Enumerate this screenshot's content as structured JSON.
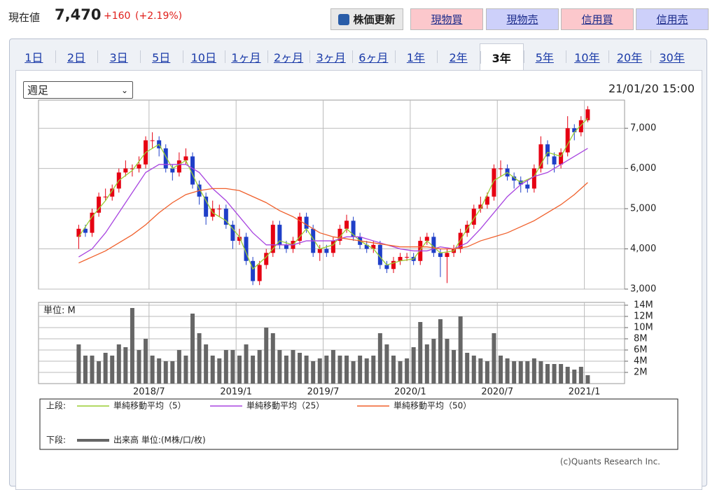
{
  "header": {
    "label": "現在値",
    "price": "7,470",
    "change": "+160",
    "change_pct": "(+2.19%)"
  },
  "buttons": {
    "refresh": "株価更新",
    "orders": [
      "現物買",
      "現物売",
      "信用買",
      "信用売"
    ]
  },
  "tabs": {
    "items": [
      "1日",
      "2日",
      "3日",
      "5日",
      "10日",
      "1ヶ月",
      "2ヶ月",
      "3ヶ月",
      "6ヶ月",
      "1年",
      "2年",
      "3年",
      "5年",
      "10年",
      "20年",
      "30年"
    ],
    "active": 11
  },
  "period_select": "週足",
  "timestamp": "21/01/20 15:00",
  "chart_data": [
    {
      "type": "candlestick",
      "x": [
        -21,
        -19,
        -17,
        -15,
        -13,
        -11,
        -9,
        -7,
        -5,
        -3,
        -1,
        1,
        3,
        5,
        7,
        9,
        11,
        13,
        15,
        17,
        19,
        21,
        23,
        25,
        27,
        29,
        31,
        33,
        35,
        37,
        39,
        41,
        43,
        45,
        47,
        49,
        51,
        53,
        55,
        57,
        59,
        61,
        63,
        65,
        67,
        69,
        71,
        73,
        75,
        77,
        79,
        81,
        83,
        85,
        87,
        89,
        91,
        93,
        95,
        97,
        99,
        101,
        103,
        105,
        107,
        109,
        111,
        113,
        115,
        117,
        119,
        121,
        123,
        125,
        127,
        129,
        131
      ],
      "open": [
        4300,
        4500,
        4400,
        4900,
        5300,
        5300,
        5500,
        5900,
        6000,
        6000,
        6100,
        6700,
        6700,
        6500,
        6000,
        5900,
        6200,
        6300,
        5600,
        5300,
        4800,
        5000,
        5000,
        4600,
        4200,
        4300,
        3700,
        3200,
        3600,
        3900,
        4600,
        4100,
        4000,
        4200,
        4800,
        4500,
        3900,
        4000,
        3900,
        4200,
        4500,
        4700,
        4300,
        4100,
        4000,
        4100,
        3600,
        3500,
        3700,
        3800,
        3800,
        3700,
        4200,
        4300,
        3900,
        3800,
        3900,
        4000,
        4400,
        4600,
        5000,
        5100,
        5300,
        6000,
        6000,
        5800,
        5700,
        5600,
        5500,
        6000,
        6600,
        6300,
        6100,
        6400,
        7000,
        6900,
        7200
      ],
      "high": [
        4600,
        4600,
        5000,
        5400,
        5500,
        5600,
        6000,
        6200,
        6100,
        6300,
        6800,
        6900,
        6800,
        6600,
        6100,
        6400,
        6500,
        6400,
        5700,
        5400,
        5200,
        5100,
        5100,
        4700,
        4500,
        4400,
        3800,
        3700,
        4000,
        4700,
        4700,
        4200,
        4300,
        4900,
        4900,
        4600,
        4100,
        4100,
        4300,
        4600,
        4850,
        4800,
        4400,
        4200,
        4200,
        4200,
        3700,
        3800,
        3900,
        3900,
        3900,
        4300,
        4400,
        4400,
        4000,
        4000,
        4100,
        4500,
        4700,
        5100,
        5300,
        5400,
        6100,
        6200,
        6100,
        5900,
        5800,
        5700,
        6100,
        6800,
        6700,
        6400,
        6500,
        7300,
        7100,
        7300,
        7550
      ],
      "low": [
        4000,
        4300,
        4300,
        4800,
        5200,
        5200,
        5400,
        5800,
        5800,
        5900,
        6000,
        6500,
        6300,
        5900,
        5700,
        5800,
        6100,
        5500,
        5100,
        4600,
        4700,
        4800,
        4500,
        4000,
        4100,
        3600,
        3100,
        3100,
        3500,
        3800,
        4000,
        3900,
        3900,
        4100,
        4400,
        3800,
        3700,
        3800,
        3800,
        4100,
        4400,
        4200,
        4000,
        3900,
        3900,
        3500,
        3400,
        3400,
        3600,
        3700,
        3600,
        3600,
        4100,
        3800,
        3300,
        3150,
        3800,
        3900,
        4300,
        4500,
        4900,
        5000,
        5200,
        5800,
        5700,
        5500,
        5400,
        5400,
        5400,
        5900,
        6100,
        5900,
        6000,
        6300,
        6700,
        6800,
        7150
      ],
      "close": [
        4500,
        4400,
        4900,
        5300,
        5300,
        5500,
        5900,
        6000,
        6000,
        6100,
        6700,
        6700,
        6500,
        6000,
        5900,
        6200,
        6300,
        5600,
        5300,
        4800,
        5000,
        5000,
        4600,
        4200,
        4300,
        3700,
        3200,
        3600,
        3900,
        4600,
        4100,
        4000,
        4200,
        4800,
        4500,
        3900,
        4000,
        3900,
        4200,
        4500,
        4700,
        4300,
        4100,
        4000,
        4100,
        3600,
        3500,
        3700,
        3800,
        3800,
        3700,
        4200,
        4300,
        3900,
        3800,
        3900,
        4000,
        4400,
        4600,
        5000,
        5100,
        5300,
        6000,
        6000,
        5800,
        5700,
        5600,
        5500,
        6000,
        6600,
        6300,
        6100,
        6400,
        7000,
        6900,
        7200,
        7470
      ],
      "up_color": "#e60012",
      "down_color": "#1f3fc8",
      "series": [
        {
          "name": "単純移動平均（5）",
          "color": "#9acd32",
          "x": [
            -21,
            -17,
            -13,
            -9,
            -5,
            -1,
            3,
            7,
            11,
            15,
            19,
            23,
            27,
            31,
            35,
            39,
            43,
            47,
            51,
            55,
            59,
            63,
            67,
            71,
            75,
            79,
            83,
            87,
            91,
            95,
            99,
            103,
            107,
            111,
            115,
            119,
            123,
            127,
            131
          ],
          "values": [
            4300,
            4800,
            5200,
            5700,
            5950,
            6400,
            6600,
            6000,
            6200,
            5500,
            4900,
            4700,
            4300,
            3500,
            3800,
            4200,
            4100,
            4500,
            4000,
            4100,
            4500,
            4200,
            4000,
            3600,
            3700,
            3750,
            4200,
            3900,
            3950,
            4500,
            5000,
            5700,
            5900,
            5650,
            5800,
            6400,
            6300,
            6900,
            7250
          ]
        },
        {
          "name": "単純移動平均（25）",
          "color": "#a845e0",
          "x": [
            -21,
            -17,
            -13,
            -9,
            -5,
            -1,
            3,
            7,
            11,
            15,
            19,
            23,
            27,
            31,
            35,
            39,
            43,
            47,
            51,
            55,
            59,
            63,
            67,
            71,
            75,
            79,
            83,
            87,
            91,
            95,
            99,
            103,
            107,
            111,
            115,
            119,
            123,
            127,
            131
          ],
          "values": [
            3800,
            4000,
            4400,
            4900,
            5400,
            5900,
            6100,
            6100,
            6100,
            5900,
            5500,
            5200,
            4800,
            4400,
            4100,
            4100,
            4100,
            4200,
            4200,
            4200,
            4300,
            4300,
            4200,
            4100,
            4000,
            3950,
            3950,
            4050,
            4000,
            4150,
            4500,
            4900,
            5300,
            5600,
            5800,
            5900,
            6100,
            6300,
            6500
          ]
        },
        {
          "name": "単純移動平均（50）",
          "color": "#f0602c",
          "x": [
            -21,
            -17,
            -13,
            -9,
            -5,
            -1,
            3,
            7,
            11,
            15,
            19,
            23,
            27,
            31,
            35,
            39,
            43,
            47,
            51,
            55,
            59,
            63,
            67,
            71,
            75,
            79,
            83,
            87,
            91,
            95,
            99,
            103,
            107,
            111,
            115,
            119,
            123,
            127,
            131
          ],
          "values": [
            3650,
            3800,
            3950,
            4150,
            4350,
            4600,
            4900,
            5150,
            5350,
            5450,
            5500,
            5500,
            5450,
            5300,
            5150,
            4950,
            4800,
            4600,
            4400,
            4300,
            4250,
            4200,
            4150,
            4100,
            4050,
            4050,
            4050,
            4000,
            4000,
            4050,
            4200,
            4300,
            4400,
            4550,
            4700,
            4900,
            5100,
            5350,
            5650
          ]
        }
      ],
      "xlim": [
        -33,
        142
      ],
      "xticks": [
        {
          "value": 0,
          "label": "2018/7"
        },
        {
          "value": 26,
          "label": "2019/1"
        },
        {
          "value": 52,
          "label": "2019/7"
        },
        {
          "value": 78,
          "label": "2020/1"
        },
        {
          "value": 104,
          "label": "2020/7"
        },
        {
          "value": 130,
          "label": "2021/1"
        }
      ],
      "ylim": [
        3000,
        7700
      ],
      "yticks": [
        {
          "value": 3000,
          "label": "3,000"
        },
        {
          "value": 4000,
          "label": "4,000"
        },
        {
          "value": 5000,
          "label": "5,000"
        },
        {
          "value": 6000,
          "label": "6,000"
        },
        {
          "value": 7000,
          "label": "7,000"
        }
      ],
      "grid": true
    },
    {
      "type": "bar",
      "name": "出来高 単位:(M株/口/枚)",
      "unit_label": "単位: M",
      "color": "#666666",
      "values": [
        7,
        5,
        5,
        4,
        5.5,
        5,
        7,
        6.5,
        13.5,
        6,
        8,
        5,
        4.5,
        4,
        4,
        6,
        5,
        12.5,
        9,
        7,
        5,
        4.5,
        6,
        6,
        5,
        7,
        5,
        6,
        10,
        9,
        6,
        5,
        6,
        5.5,
        5,
        4,
        4.5,
        5,
        6,
        5,
        5,
        4,
        5,
        4.5,
        5,
        9,
        7,
        5,
        4,
        4.5,
        6.5,
        11,
        7,
        8,
        11.5,
        8,
        6,
        12,
        5.5,
        5,
        4.5,
        4,
        9,
        5,
        4.5,
        4,
        4,
        4,
        4.5,
        4,
        3.5,
        3.5,
        3.5,
        3,
        2.5,
        3,
        1.5
      ],
      "ylim": [
        0,
        14.5
      ],
      "yticks": [
        {
          "value": 2,
          "label": "2M"
        },
        {
          "value": 4,
          "label": "4M"
        },
        {
          "value": 6,
          "label": "6M"
        },
        {
          "value": 8,
          "label": "8M"
        },
        {
          "value": 10,
          "label": "10M"
        },
        {
          "value": 12,
          "label": "12M"
        },
        {
          "value": 14,
          "label": "14M"
        }
      ],
      "grid": true
    }
  ],
  "legend": {
    "upper": "上段:",
    "lower": "下段:"
  },
  "copyright": "(c)Quants Research Inc."
}
